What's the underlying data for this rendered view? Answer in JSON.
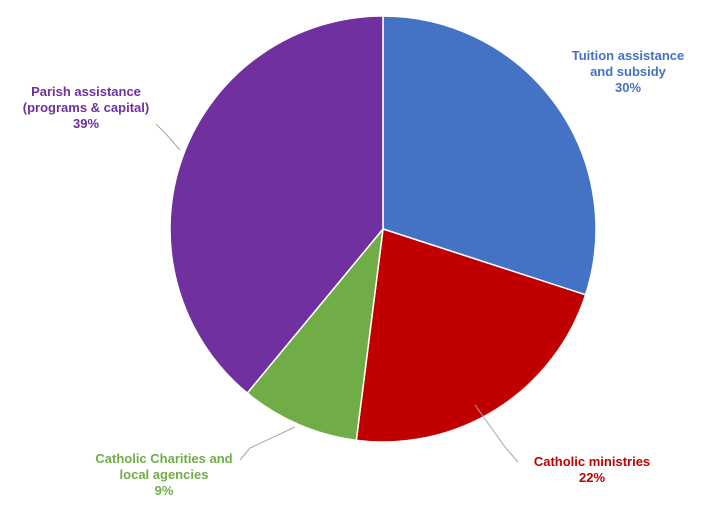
{
  "chart_data": {
    "type": "pie",
    "title": "",
    "start_angle_deg": 0,
    "direction": "clockwise",
    "slices": [
      {
        "label_lines": [
          "Tuition assistance",
          "and subsidy"
        ],
        "pct_text": "30%",
        "value": 30,
        "color": "#4472C4"
      },
      {
        "label_lines": [
          "Catholic ministries"
        ],
        "pct_text": "22%",
        "value": 22,
        "color": "#C00000"
      },
      {
        "label_lines": [
          "Catholic Charities and",
          "local agencies"
        ],
        "pct_text": "9%",
        "value": 9,
        "color": "#70AD47"
      },
      {
        "label_lines": [
          "Parish assistance",
          "(programs & capital)"
        ],
        "pct_text": "39%",
        "value": 39,
        "color": "#7030A0"
      }
    ],
    "leader_line_color": "#A6A6A6",
    "slice_border_color": "#ffffff"
  }
}
